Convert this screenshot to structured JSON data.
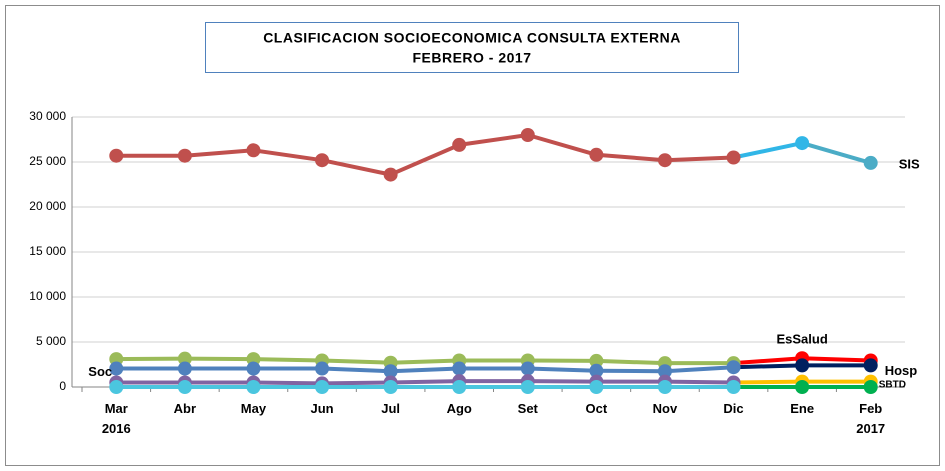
{
  "chart_data": {
    "type": "line",
    "title": "CLASIFICACION SOCIOECONOMICA CONSULTA EXTERNA",
    "subtitle": "FEBRERO - 2017",
    "categories": [
      "Mar 2016",
      "Abr",
      "May",
      "Jun",
      "Jul",
      "Ago",
      "Set",
      "Oct",
      "Nov",
      "Dic",
      "Ene",
      "Feb 2017"
    ],
    "series": [
      {
        "name": "SIS",
        "colors": [
          "#c0504d",
          "#c0504d",
          "#c0504d",
          "#c0504d",
          "#c0504d",
          "#c0504d",
          "#c0504d",
          "#c0504d",
          "#c0504d",
          "#c0504d",
          "#31b6e7",
          "#4bacc6"
        ],
        "values": [
          25700,
          25700,
          26300,
          25200,
          23600,
          26900,
          28000,
          25800,
          25200,
          25500,
          27100,
          24900
        ]
      },
      {
        "name": "EsSalud",
        "colors": [
          "#9bbb59",
          "#9bbb59",
          "#9bbb59",
          "#9bbb59",
          "#9bbb59",
          "#9bbb59",
          "#9bbb59",
          "#9bbb59",
          "#9bbb59",
          "#9bbb59",
          "#ff0000",
          "#ff0000"
        ],
        "values": [
          3100,
          3150,
          3100,
          2950,
          2700,
          2950,
          2950,
          2900,
          2650,
          2650,
          3200,
          2950
        ]
      },
      {
        "name": "Hosp",
        "colors": [
          "#4f81bd",
          "#4f81bd",
          "#4f81bd",
          "#4f81bd",
          "#4f81bd",
          "#4f81bd",
          "#4f81bd",
          "#4f81bd",
          "#4f81bd",
          "#4f81bd",
          "#002060",
          "#002060"
        ],
        "values": [
          2050,
          2050,
          2050,
          2050,
          1750,
          2050,
          2050,
          1800,
          1750,
          2200,
          2400,
          2400
        ]
      },
      {
        "name": "Soc",
        "colors": [
          "#8064a2",
          "#8064a2",
          "#8064a2",
          "#8064a2",
          "#8064a2",
          "#8064a2",
          "#8064a2",
          "#8064a2",
          "#8064a2",
          "#8064a2",
          "#ffc000",
          "#ffc000"
        ],
        "values": [
          500,
          500,
          500,
          400,
          500,
          650,
          650,
          600,
          600,
          500,
          600,
          600
        ]
      },
      {
        "name": "SBTD",
        "colors": [
          "#4bc6df",
          "#4bc6df",
          "#4bc6df",
          "#4bc6df",
          "#4bc6df",
          "#4bc6df",
          "#4bc6df",
          "#4bc6df",
          "#4bc6df",
          "#4bc6df",
          "#00b050",
          "#00b050"
        ],
        "values": [
          0,
          0,
          0,
          0,
          0,
          0,
          0,
          0,
          0,
          0,
          0,
          0
        ]
      }
    ],
    "ylim": [
      0,
      30000
    ],
    "yticks": [
      0,
      {
        "value": 5000,
        "label": "5 000"
      },
      {
        "value": 10000,
        "label": "10 000"
      },
      {
        "value": 15000,
        "label": "15 000"
      },
      {
        "value": 20000,
        "label": "20 000"
      },
      {
        "value": 25000,
        "label": "25 000"
      },
      {
        "value": 30000,
        "label": "30 000"
      }
    ],
    "grid": true
  }
}
